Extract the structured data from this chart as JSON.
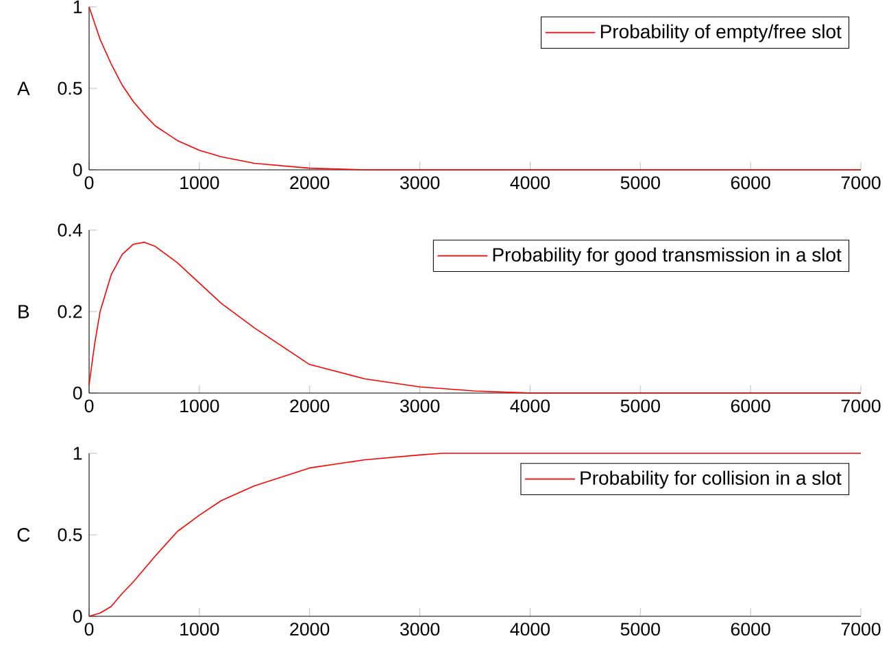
{
  "chart_data": [
    {
      "type": "line",
      "ylabel": "A",
      "x": [
        0,
        100,
        200,
        300,
        400,
        500,
        600,
        800,
        1000,
        1200,
        1500,
        2000,
        2500,
        3000,
        7000
      ],
      "series": [
        {
          "name": "Probability of empty/free slot",
          "color": "#ff0000",
          "values": [
            1,
            0.8,
            0.65,
            0.52,
            0.42,
            0.34,
            0.27,
            0.18,
            0.12,
            0.08,
            0.04,
            0.01,
            0,
            0,
            0
          ]
        }
      ],
      "xlim": [
        0,
        7000
      ],
      "xticks": [
        0,
        1000,
        2000,
        3000,
        4000,
        5000,
        6000,
        7000
      ],
      "ylim": [
        0,
        1
      ],
      "yticks": [
        0,
        0.5,
        1
      ],
      "legend": "top right"
    },
    {
      "type": "line",
      "ylabel": "B",
      "x": [
        0,
        50,
        100,
        200,
        300,
        400,
        500,
        600,
        800,
        1000,
        1200,
        1500,
        2000,
        2500,
        3000,
        3500,
        4000,
        7000
      ],
      "series": [
        {
          "name": "Probability for good transmission in a slot",
          "color": "#ff0000",
          "values": [
            0.02,
            0.12,
            0.2,
            0.29,
            0.34,
            0.365,
            0.37,
            0.36,
            0.32,
            0.27,
            0.22,
            0.16,
            0.07,
            0.035,
            0.015,
            0.005,
            0,
            0
          ]
        }
      ],
      "xlim": [
        0,
        7000
      ],
      "xticks": [
        0,
        1000,
        2000,
        3000,
        4000,
        5000,
        6000,
        7000
      ],
      "ylim": [
        0,
        0.4
      ],
      "yticks": [
        0,
        0.2,
        0.4
      ],
      "legend": "top right"
    },
    {
      "type": "line",
      "ylabel": "C",
      "x": [
        0,
        100,
        200,
        300,
        400,
        500,
        600,
        800,
        1000,
        1200,
        1500,
        2000,
        2500,
        3000,
        3200,
        7000
      ],
      "series": [
        {
          "name": "Probability for collision in a slot",
          "color": "#ff0000",
          "values": [
            0,
            0.02,
            0.06,
            0.14,
            0.21,
            0.29,
            0.37,
            0.52,
            0.62,
            0.71,
            0.8,
            0.91,
            0.96,
            0.99,
            1,
            1
          ]
        }
      ],
      "xlim": [
        0,
        7000
      ],
      "xticks": [
        0,
        1000,
        2000,
        3000,
        4000,
        5000,
        6000,
        7000
      ],
      "ylim": [
        0,
        1
      ],
      "yticks": [
        0,
        0.5,
        1
      ],
      "legend": "top right"
    }
  ]
}
